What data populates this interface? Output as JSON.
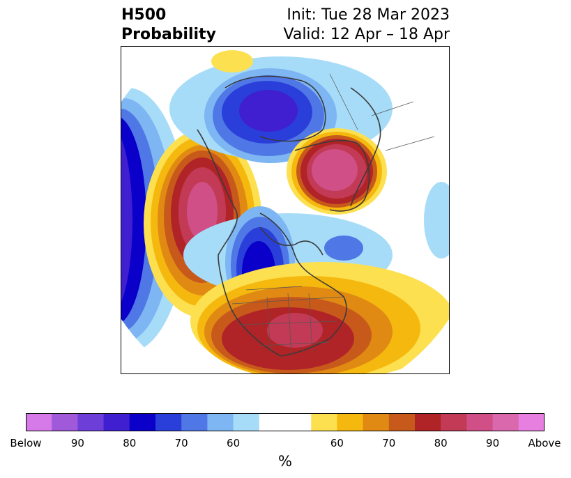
{
  "header": {
    "variable": "H500",
    "product": "Probability",
    "init_line": "Init: Tue 28 Mar 2023",
    "valid_line": "Valid: 12 Apr – 18 Apr"
  },
  "colorbar": {
    "unit": "%",
    "segments": [
      "#d57ae8",
      "#a05ad9",
      "#6d3ed8",
      "#3f1fd0",
      "#0b00c9",
      "#2a3fd9",
      "#4f78e6",
      "#7db6f2",
      "#a7dcf9",
      "#ffffff",
      "#ffffff",
      "#fde04f",
      "#f5b80e",
      "#e08a14",
      "#c75a1b",
      "#b02427",
      "#c23a55",
      "#cf4f86",
      "#d968ad",
      "#e77fe0"
    ],
    "tick_labels": [
      "Below",
      "90",
      "80",
      "70",
      "60",
      "60",
      "70",
      "80",
      "90",
      "Above"
    ]
  },
  "colors": {
    "below_strong": "#0b00c9",
    "below_mid": "#4f78e6",
    "below_weak": "#a7dcf9",
    "above_weak": "#fde04f",
    "above_mid": "#e08a14",
    "above_strong": "#b02427",
    "above_max": "#d968ad",
    "coastline": "#3a3a3a"
  }
}
